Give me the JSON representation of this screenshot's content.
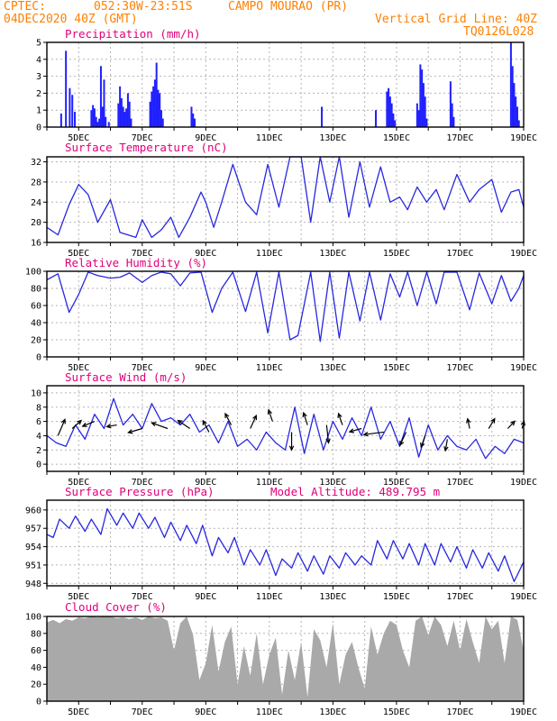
{
  "header": {
    "source": "CPTEC:",
    "coords": "052:30W-23:51S",
    "location": "CAMPO MOURAO (PR)",
    "init_time": "04DEC2020 40Z (GMT)",
    "grid_note": "Vertical Grid Line: 40Z",
    "model_code": "TQ0126L028"
  },
  "colors": {
    "header": "#ff8000",
    "panel_title": "#e0007a",
    "line": "#2828e0",
    "bar": "#2020ff",
    "cloud": "#a9a9a9",
    "grid": "#b4b4b4"
  },
  "chart_data": [
    {
      "type": "bar",
      "title": "Precipitation (mm/h)",
      "ylim": [
        0,
        5
      ],
      "yticks": [
        "0",
        "1",
        "2",
        "3",
        "4",
        "5"
      ],
      "xlim": [
        4.0,
        19.0
      ],
      "xticks": [
        "5DEC",
        "7DEC",
        "9DEC",
        "11DEC",
        "13DEC",
        "15DEC",
        "17DEC",
        "19DEC"
      ],
      "grid": true,
      "x": [
        4.45,
        4.6,
        4.72,
        4.8,
        4.88,
        5.4,
        5.45,
        5.5,
        5.55,
        5.6,
        5.65,
        5.7,
        5.75,
        5.8,
        5.85,
        5.95,
        6.25,
        6.3,
        6.35,
        6.4,
        6.45,
        6.5,
        6.55,
        6.6,
        6.65,
        7.25,
        7.3,
        7.35,
        7.4,
        7.45,
        7.5,
        7.55,
        7.6,
        7.65,
        8.55,
        8.6,
        8.65,
        12.65,
        14.35,
        14.7,
        14.75,
        14.8,
        14.85,
        14.9,
        14.95,
        15.65,
        15.7,
        15.75,
        15.8,
        15.85,
        15.9,
        15.95,
        16.7,
        16.75,
        16.8,
        18.6,
        18.65,
        18.7,
        18.75,
        18.8,
        18.85
      ],
      "values": [
        0.8,
        4.5,
        2.3,
        1.9,
        0.9,
        1.0,
        1.3,
        1.1,
        0.6,
        0.3,
        0.5,
        3.6,
        1.2,
        2.8,
        0.6,
        0.3,
        1.4,
        2.4,
        1.7,
        1.2,
        0.9,
        1.1,
        2.0,
        1.5,
        0.5,
        1.5,
        2.1,
        2.4,
        2.8,
        3.8,
        2.2,
        2.0,
        1.0,
        0.5,
        1.2,
        0.8,
        0.5,
        1.2,
        1.0,
        2.1,
        2.3,
        1.8,
        1.4,
        0.8,
        0.4,
        1.4,
        1.0,
        3.7,
        3.4,
        2.6,
        1.8,
        0.5,
        2.7,
        1.4,
        0.6,
        5.0,
        3.6,
        2.6,
        1.8,
        1.2,
        0.4
      ]
    },
    {
      "type": "line",
      "title": "Surface Temperature (nC)",
      "ylim": [
        16,
        33
      ],
      "yticks": [
        "16",
        "20",
        "24",
        "28",
        "32"
      ],
      "xlim": [
        4.0,
        19.0
      ],
      "xticks": [
        "5DEC",
        "7DEC",
        "9DEC",
        "11DEC",
        "13DEC",
        "15DEC",
        "17DEC",
        "19DEC"
      ],
      "grid": true,
      "x": [
        4.0,
        4.35,
        4.7,
        5.0,
        5.3,
        5.6,
        6.0,
        6.3,
        6.8,
        7.0,
        7.3,
        7.6,
        7.9,
        8.15,
        8.5,
        8.85,
        9.0,
        9.25,
        9.5,
        9.85,
        10.25,
        10.6,
        10.95,
        11.3,
        11.65,
        12.0,
        12.3,
        12.6,
        12.9,
        13.2,
        13.5,
        13.85,
        14.15,
        14.5,
        14.8,
        15.1,
        15.35,
        15.65,
        15.95,
        16.25,
        16.5,
        16.9,
        17.3,
        17.6,
        18.0,
        18.3,
        18.6,
        18.85,
        19.0
      ],
      "values": [
        19.0,
        17.5,
        23.5,
        27.5,
        25.5,
        20.0,
        24.5,
        18.0,
        17.0,
        20.5,
        17.0,
        18.5,
        21.0,
        17.0,
        21.0,
        26.0,
        24.0,
        19.0,
        24.0,
        31.5,
        24.0,
        21.5,
        31.5,
        23.0,
        33.0,
        33.0,
        20.0,
        33.0,
        24.0,
        33.0,
        21.0,
        32.0,
        23.0,
        31.0,
        24.0,
        25.0,
        22.5,
        27.0,
        24.0,
        26.5,
        22.5,
        29.5,
        24.0,
        26.5,
        28.5,
        22.0,
        26.0,
        26.5,
        23.0
      ]
    },
    {
      "type": "line",
      "title": "Relative Humidity (%)",
      "ylim": [
        0,
        100
      ],
      "yticks": [
        "0",
        "20",
        "40",
        "60",
        "80",
        "100"
      ],
      "xlim": [
        4.0,
        19.0
      ],
      "xticks": [
        "5DEC",
        "7DEC",
        "9DEC",
        "11DEC",
        "13DEC",
        "15DEC",
        "17DEC",
        "19DEC"
      ],
      "grid": true,
      "x": [
        4.0,
        4.35,
        4.7,
        5.0,
        5.3,
        5.6,
        6.0,
        6.3,
        6.6,
        7.0,
        7.3,
        7.6,
        7.9,
        8.2,
        8.5,
        8.85,
        9.2,
        9.5,
        9.85,
        10.25,
        10.6,
        10.95,
        11.3,
        11.65,
        11.9,
        12.3,
        12.6,
        12.9,
        13.2,
        13.5,
        13.85,
        14.15,
        14.5,
        14.8,
        15.1,
        15.35,
        15.65,
        15.95,
        16.25,
        16.5,
        16.9,
        17.3,
        17.6,
        18.0,
        18.3,
        18.6,
        18.85,
        19.0
      ],
      "values": [
        90.0,
        97.0,
        52.0,
        73.0,
        99.0,
        95.0,
        92.0,
        93.0,
        98.0,
        87.0,
        95.0,
        99.0,
        97.0,
        83.0,
        98.0,
        99.0,
        52.0,
        80.0,
        99.0,
        53.0,
        99.0,
        28.0,
        99.0,
        20.0,
        25.0,
        99.0,
        18.0,
        99.0,
        22.0,
        99.0,
        42.0,
        99.0,
        43.0,
        97.0,
        70.0,
        99.0,
        60.0,
        99.0,
        62.0,
        99.0,
        99.0,
        55.0,
        98.0,
        62.0,
        95.0,
        65.0,
        80.0,
        95.0
      ]
    },
    {
      "type": "line",
      "title": "Surface Wind (m/s)",
      "ylim": [
        -1,
        11
      ],
      "yticks": [
        "0",
        "2",
        "4",
        "6",
        "8",
        "10"
      ],
      "xlim": [
        4.0,
        19.0
      ],
      "xticks": [
        "5DEC",
        "7DEC",
        "9DEC",
        "11DEC",
        "13DEC",
        "15DEC",
        "17DEC",
        "19DEC"
      ],
      "grid": true,
      "x": [
        4.0,
        4.3,
        4.6,
        4.9,
        5.2,
        5.5,
        5.8,
        6.1,
        6.4,
        6.7,
        7.0,
        7.3,
        7.6,
        7.9,
        8.2,
        8.5,
        8.8,
        9.1,
        9.4,
        9.7,
        10.0,
        10.3,
        10.6,
        10.9,
        11.2,
        11.5,
        11.8,
        12.1,
        12.4,
        12.7,
        13.0,
        13.3,
        13.6,
        13.9,
        14.2,
        14.5,
        14.8,
        15.1,
        15.4,
        15.7,
        16.0,
        16.3,
        16.6,
        16.9,
        17.2,
        17.5,
        17.8,
        18.1,
        18.4,
        18.7,
        19.0
      ],
      "values": [
        4.0,
        3.0,
        2.5,
        5.5,
        3.5,
        7.0,
        5.0,
        9.2,
        5.5,
        7.0,
        5.0,
        8.5,
        6.0,
        6.5,
        5.5,
        7.0,
        4.5,
        5.5,
        3.0,
        6.0,
        2.5,
        3.5,
        2.0,
        4.5,
        3.0,
        2.0,
        8.0,
        1.5,
        7.0,
        2.0,
        6.0,
        3.5,
        6.5,
        4.0,
        8.0,
        3.5,
        6.0,
        2.5,
        6.5,
        1.0,
        5.5,
        2.0,
        4.0,
        2.5,
        2.0,
        3.5,
        0.8,
        2.5,
        1.5,
        3.5,
        3.0
      ],
      "vectors": [
        {
          "x": 4.35,
          "y": 4.0,
          "u": 0.35,
          "v": 2.0
        },
        {
          "x": 4.8,
          "y": 5.0,
          "u": 0.45,
          "v": 1.0
        },
        {
          "x": 5.5,
          "y": 6.0,
          "u": -0.6,
          "v": -0.6
        },
        {
          "x": 6.2,
          "y": 5.5,
          "u": -0.5,
          "v": -0.2
        },
        {
          "x": 7.0,
          "y": 5.0,
          "u": -0.7,
          "v": -0.5
        },
        {
          "x": 7.8,
          "y": 5.0,
          "u": -0.8,
          "v": 0.7
        },
        {
          "x": 8.5,
          "y": 5.0,
          "u": -0.6,
          "v": 1.0
        },
        {
          "x": 9.1,
          "y": 4.5,
          "u": -0.3,
          "v": 1.4
        },
        {
          "x": 9.8,
          "y": 5.5,
          "u": -0.3,
          "v": 1.4
        },
        {
          "x": 10.4,
          "y": 5.0,
          "u": 0.3,
          "v": 1.6
        },
        {
          "x": 11.1,
          "y": 6.0,
          "u": -0.2,
          "v": 1.4
        },
        {
          "x": 11.7,
          "y": 4.5,
          "u": 0.0,
          "v": -2.2
        },
        {
          "x": 12.2,
          "y": 5.5,
          "u": -0.2,
          "v": 1.5
        },
        {
          "x": 12.8,
          "y": 5.5,
          "u": 0.1,
          "v": -2.2
        },
        {
          "x": 13.3,
          "y": 5.5,
          "u": -0.2,
          "v": 1.4
        },
        {
          "x": 13.9,
          "y": 5.0,
          "u": -0.6,
          "v": -0.4
        },
        {
          "x": 14.6,
          "y": 4.5,
          "u": -1.0,
          "v": -0.3
        },
        {
          "x": 15.3,
          "y": 4.5,
          "u": -0.3,
          "v": -1.6
        },
        {
          "x": 15.9,
          "y": 4.0,
          "u": -0.2,
          "v": -1.4
        },
        {
          "x": 16.6,
          "y": 3.5,
          "u": -0.1,
          "v": -1.4
        },
        {
          "x": 17.3,
          "y": 5.0,
          "u": -0.1,
          "v": 1.2
        },
        {
          "x": 17.9,
          "y": 5.0,
          "u": 0.3,
          "v": 1.2
        },
        {
          "x": 18.5,
          "y": 5.0,
          "u": 0.35,
          "v": 0.9
        },
        {
          "x": 18.95,
          "y": 5.0,
          "u": 0.1,
          "v": 0.9
        }
      ]
    },
    {
      "type": "line",
      "title": "Surface Pressure (hPa)",
      "annotation": "Model Altitude: 489.795 m",
      "ylim": [
        947.6,
        961.6
      ],
      "yticks": [
        "948",
        "951",
        "954",
        "957",
        "960"
      ],
      "xlim": [
        4.0,
        19.0
      ],
      "xticks": [
        "5DEC",
        "7DEC",
        "9DEC",
        "11DEC",
        "13DEC",
        "15DEC",
        "17DEC",
        "19DEC"
      ],
      "grid": true,
      "x": [
        4.0,
        4.2,
        4.4,
        4.7,
        4.9,
        5.2,
        5.4,
        5.7,
        5.9,
        6.2,
        6.4,
        6.7,
        6.9,
        7.2,
        7.4,
        7.7,
        7.9,
        8.2,
        8.4,
        8.7,
        8.9,
        9.2,
        9.4,
        9.7,
        9.9,
        10.2,
        10.4,
        10.7,
        10.9,
        11.2,
        11.4,
        11.7,
        11.9,
        12.2,
        12.4,
        12.7,
        12.9,
        13.2,
        13.4,
        13.7,
        13.9,
        14.2,
        14.4,
        14.7,
        14.9,
        15.2,
        15.4,
        15.7,
        15.9,
        16.2,
        16.4,
        16.7,
        16.9,
        17.2,
        17.4,
        17.7,
        17.9,
        18.2,
        18.4,
        18.7,
        19.0
      ],
      "values": [
        956.0,
        955.5,
        958.5,
        957.0,
        959.0,
        956.5,
        958.5,
        956.0,
        960.2,
        957.5,
        959.5,
        957.0,
        959.5,
        957.0,
        958.8,
        955.5,
        958.0,
        955.0,
        957.5,
        954.5,
        957.5,
        952.5,
        955.5,
        953.0,
        955.5,
        951.0,
        953.5,
        951.0,
        953.5,
        949.3,
        952.0,
        950.5,
        953.0,
        950.0,
        952.5,
        949.5,
        952.5,
        950.5,
        953.0,
        951.0,
        952.5,
        951.0,
        955.0,
        952.0,
        955.0,
        952.0,
        954.5,
        951.0,
        954.5,
        951.0,
        954.5,
        951.5,
        954.0,
        950.5,
        953.5,
        950.5,
        953.0,
        950.0,
        952.5,
        948.3,
        951.5
      ]
    },
    {
      "type": "area",
      "title": "Cloud Cover (%)",
      "ylim": [
        0,
        100
      ],
      "yticks": [
        "0",
        "20",
        "40",
        "60",
        "80",
        "100"
      ],
      "xlim": [
        4.0,
        19.0
      ],
      "xticks": [
        "5DEC",
        "7DEC",
        "9DEC",
        "11DEC",
        "13DEC",
        "15DEC",
        "17DEC",
        "19DEC"
      ],
      "grid": true,
      "x": [
        4.0,
        4.2,
        4.4,
        4.6,
        4.8,
        5.0,
        5.2,
        5.4,
        5.6,
        5.8,
        6.0,
        6.2,
        6.4,
        6.6,
        6.8,
        7.0,
        7.2,
        7.4,
        7.6,
        7.8,
        8.0,
        8.2,
        8.4,
        8.6,
        8.8,
        9.0,
        9.2,
        9.4,
        9.6,
        9.8,
        10.0,
        10.2,
        10.4,
        10.6,
        10.8,
        11.0,
        11.2,
        11.4,
        11.6,
        11.8,
        12.0,
        12.2,
        12.4,
        12.6,
        12.8,
        13.0,
        13.2,
        13.4,
        13.6,
        13.8,
        14.0,
        14.2,
        14.4,
        14.6,
        14.8,
        15.0,
        15.2,
        15.4,
        15.6,
        15.8,
        16.0,
        16.2,
        16.4,
        16.6,
        16.8,
        17.0,
        17.2,
        17.4,
        17.6,
        17.8,
        18.0,
        18.2,
        18.4,
        18.6,
        18.8,
        19.0
      ],
      "values": [
        93.0,
        96.0,
        92.0,
        97.0,
        95.0,
        99.0,
        98.0,
        100.0,
        99.0,
        100.0,
        100.0,
        98.0,
        99.0,
        97.0,
        99.0,
        96.0,
        100.0,
        98.0,
        99.0,
        95.0,
        60.0,
        92.0,
        100.0,
        78.0,
        25.0,
        45.0,
        90.0,
        35.0,
        70.0,
        88.0,
        20.0,
        65.0,
        30.0,
        80.0,
        20.0,
        55.0,
        75.0,
        8.0,
        60.0,
        25.0,
        70.0,
        5.0,
        85.0,
        72.0,
        40.0,
        92.0,
        20.0,
        55.0,
        70.0,
        40.0,
        15.0,
        88.0,
        55.0,
        80.0,
        95.0,
        90.0,
        60.0,
        40.0,
        95.0,
        100.0,
        78.0,
        100.0,
        90.0,
        65.0,
        95.0,
        60.0,
        97.0,
        70.0,
        45.0,
        100.0,
        85.0,
        95.0,
        45.0,
        100.0,
        96.0,
        60.0
      ]
    }
  ]
}
